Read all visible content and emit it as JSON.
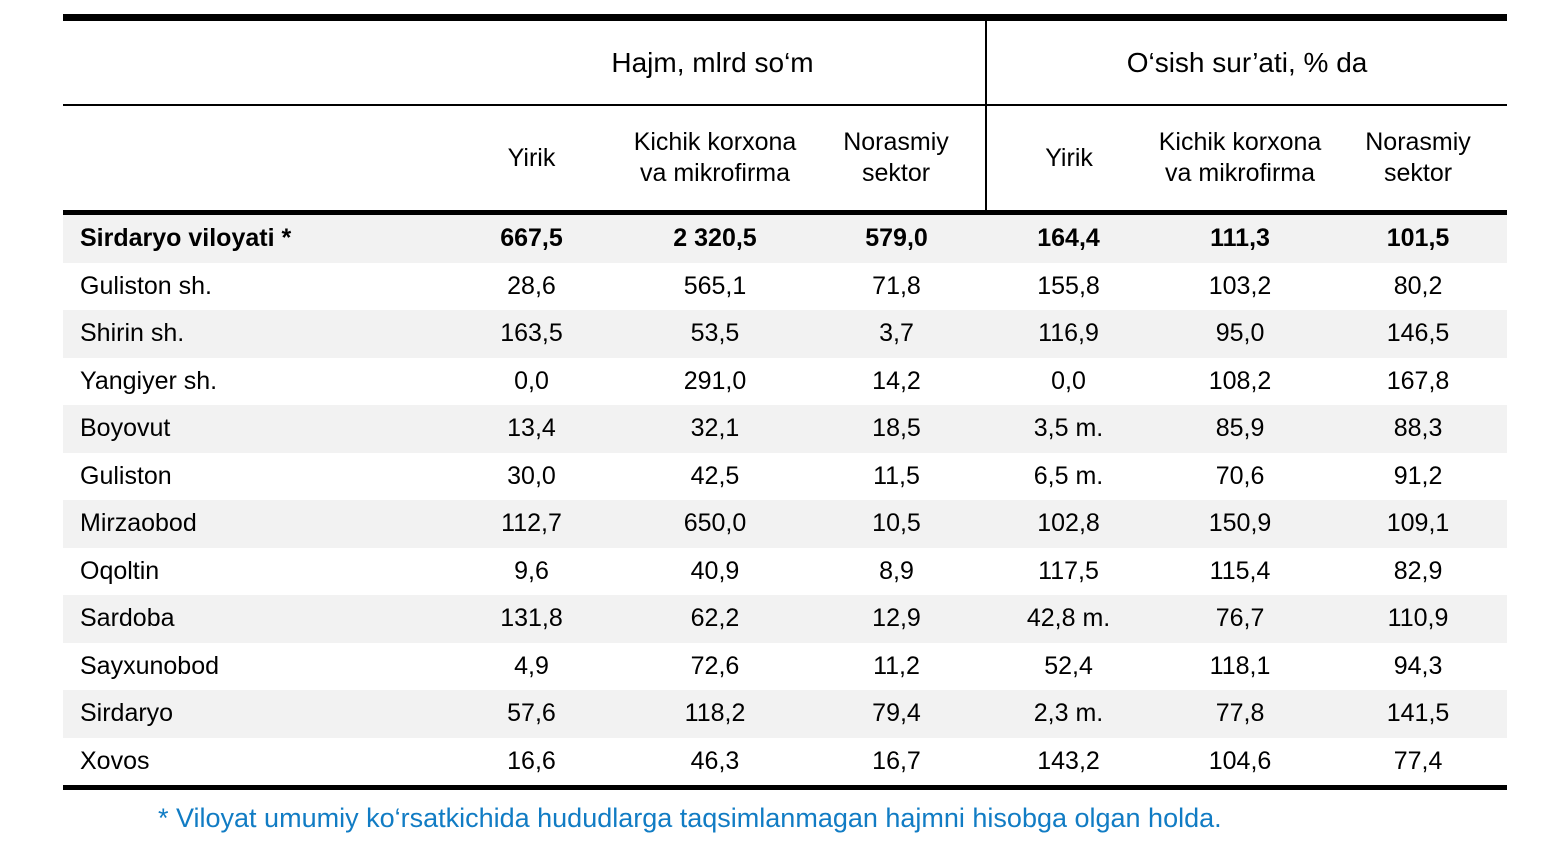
{
  "table": {
    "columns": {
      "group1": {
        "label": "Hajm, mlrd so‘m",
        "subs": [
          "Yirik",
          "Kichik korxona va mikrofirma",
          "Norasmiy sektor"
        ]
      },
      "group2": {
        "label": "O‘sish sur’ati, % da",
        "subs": [
          "Yirik",
          "Kichik korxona va mikrofirma",
          "Norasmiy sektor"
        ]
      }
    },
    "rows": [
      {
        "name": "Sirdaryo viloyati *",
        "v": [
          "667,5",
          "2 320,5",
          "579,0",
          "164,4",
          "111,3",
          "101,5"
        ]
      },
      {
        "name": "Guliston sh.",
        "v": [
          "28,6",
          "565,1",
          "71,8",
          "155,8",
          "103,2",
          "80,2"
        ]
      },
      {
        "name": "Shirin sh.",
        "v": [
          "163,5",
          "53,5",
          "3,7",
          "116,9",
          "95,0",
          "146,5"
        ]
      },
      {
        "name": "Yangiyer sh.",
        "v": [
          "0,0",
          "291,0",
          "14,2",
          "0,0",
          "108,2",
          "167,8"
        ]
      },
      {
        "name": "Boyovut",
        "v": [
          "13,4",
          "32,1",
          "18,5",
          "3,5 m.",
          "85,9",
          "88,3"
        ]
      },
      {
        "name": "Guliston",
        "v": [
          "30,0",
          "42,5",
          "11,5",
          "6,5 m.",
          "70,6",
          "91,2"
        ]
      },
      {
        "name": "Mirzaobod",
        "v": [
          "112,7",
          "650,0",
          "10,5",
          "102,8",
          "150,9",
          "109,1"
        ]
      },
      {
        "name": "Oqoltin",
        "v": [
          "9,6",
          "40,9",
          "8,9",
          "117,5",
          "115,4",
          "82,9"
        ]
      },
      {
        "name": "Sardoba",
        "v": [
          "131,8",
          "62,2",
          "12,9",
          "42,8 m.",
          "76,7",
          "110,9"
        ]
      },
      {
        "name": "Sayxunobod",
        "v": [
          "4,9",
          "72,6",
          "11,2",
          "52,4",
          "118,1",
          "94,3"
        ]
      },
      {
        "name": "Sirdaryo",
        "v": [
          "57,6",
          "118,2",
          "79,4",
          "2,3 m.",
          "77,8",
          "141,5"
        ]
      },
      {
        "name": "Xovos",
        "v": [
          "16,6",
          "46,3",
          "16,7",
          "143,2",
          "104,6",
          "77,4"
        ]
      }
    ]
  },
  "footnote": "* Viloyat umumiy ko‘rsatkichida hududlarga taqsimlanmagan hajmni hisobga olgan holda.",
  "colors": {
    "stripe": "#f2f2f2",
    "footnote_blue": "#117cc4",
    "border": "#000000"
  }
}
